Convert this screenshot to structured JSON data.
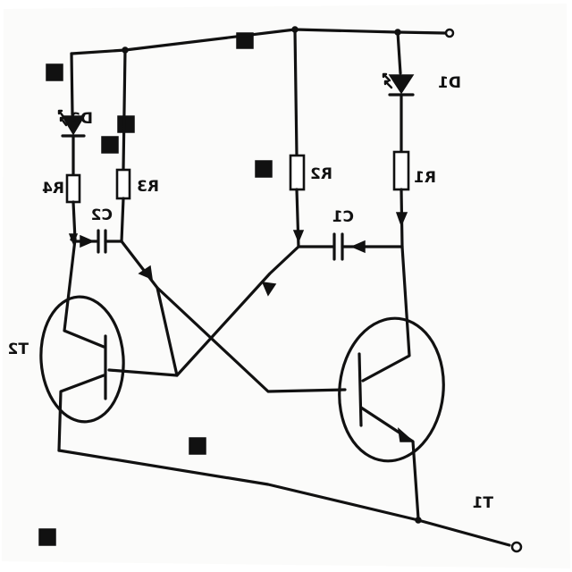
{
  "labels": {
    "d2": "D2",
    "d1": "D1",
    "r4": "R4",
    "r3": "R3",
    "r2": "R2",
    "r1": "R1",
    "c2": "C2",
    "c1": "C1",
    "t2": "T2",
    "t1": "T1"
  },
  "colors": {
    "ink": "#111111",
    "paper": "#fbfbfa"
  }
}
